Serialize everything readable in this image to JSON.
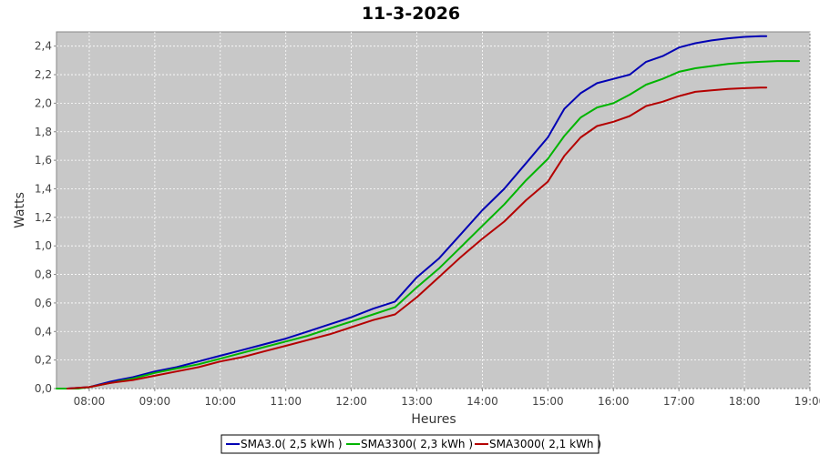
{
  "chart_data": {
    "type": "line",
    "title": "11-3-2026",
    "xlabel": "Heures",
    "ylabel": "Watts",
    "xlim": [
      "07:30",
      "19:00"
    ],
    "ylim": [
      0,
      2.5
    ],
    "x_ticks": [
      "08:00",
      "09:00",
      "10:00",
      "11:00",
      "12:00",
      "13:00",
      "14:00",
      "15:00",
      "16:00",
      "17:00",
      "18:00",
      "19:00"
    ],
    "y_ticks": [
      "0,0",
      "0,2",
      "0,4",
      "0,6",
      "0,8",
      "1,0",
      "1,2",
      "1,4",
      "1,6",
      "1,8",
      "2,0",
      "2,2",
      "2,4"
    ],
    "grid": true,
    "legend_position": "bottom",
    "series": [
      {
        "name": "SMA3.0( 2,5 kWh )",
        "color": "#0000b4",
        "x": [
          "07:40",
          "08:00",
          "08:20",
          "08:40",
          "09:00",
          "09:20",
          "09:40",
          "10:00",
          "10:20",
          "10:40",
          "11:00",
          "11:20",
          "11:40",
          "12:00",
          "12:20",
          "12:40",
          "13:00",
          "13:20",
          "13:40",
          "14:00",
          "14:20",
          "14:40",
          "15:00",
          "15:15",
          "15:30",
          "15:45",
          "16:00",
          "16:15",
          "16:30",
          "16:45",
          "17:00",
          "17:15",
          "17:30",
          "17:45",
          "18:00",
          "18:15",
          "18:20"
        ],
        "values": [
          0.0,
          0.01,
          0.05,
          0.08,
          0.12,
          0.15,
          0.19,
          0.23,
          0.27,
          0.31,
          0.35,
          0.4,
          0.45,
          0.5,
          0.56,
          0.61,
          0.78,
          0.91,
          1.08,
          1.25,
          1.4,
          1.58,
          1.76,
          1.96,
          2.07,
          2.14,
          2.17,
          2.2,
          2.29,
          2.33,
          2.39,
          2.42,
          2.44,
          2.455,
          2.465,
          2.47,
          2.47
        ]
      },
      {
        "name": "SMA3300( 2,3 kWh )",
        "color": "#00b400",
        "x": [
          "07:30",
          "07:50",
          "08:00",
          "08:20",
          "08:40",
          "09:00",
          "09:20",
          "09:40",
          "10:00",
          "10:20",
          "10:40",
          "11:00",
          "11:20",
          "11:40",
          "12:00",
          "12:20",
          "12:40",
          "13:00",
          "13:20",
          "13:40",
          "14:00",
          "14:20",
          "14:40",
          "15:00",
          "15:15",
          "15:30",
          "15:45",
          "16:00",
          "16:15",
          "16:30",
          "16:45",
          "17:00",
          "17:15",
          "17:30",
          "17:45",
          "18:00",
          "18:15",
          "18:30",
          "18:45",
          "18:50"
        ],
        "values": [
          0.0,
          0.0,
          0.01,
          0.04,
          0.07,
          0.11,
          0.14,
          0.17,
          0.21,
          0.25,
          0.29,
          0.33,
          0.37,
          0.42,
          0.47,
          0.52,
          0.57,
          0.71,
          0.84,
          0.99,
          1.14,
          1.29,
          1.46,
          1.61,
          1.77,
          1.9,
          1.97,
          2.0,
          2.06,
          2.13,
          2.17,
          2.22,
          2.245,
          2.26,
          2.275,
          2.285,
          2.29,
          2.295,
          2.295,
          2.295
        ]
      },
      {
        "name": "SMA3000( 2,1 kWh )",
        "color": "#b40000",
        "x": [
          "07:40",
          "08:00",
          "08:20",
          "08:40",
          "09:00",
          "09:20",
          "09:40",
          "10:00",
          "10:20",
          "10:40",
          "11:00",
          "11:20",
          "11:40",
          "12:00",
          "12:20",
          "12:40",
          "13:00",
          "13:20",
          "13:40",
          "14:00",
          "14:20",
          "14:40",
          "15:00",
          "15:15",
          "15:30",
          "15:45",
          "16:00",
          "16:15",
          "16:30",
          "16:45",
          "17:00",
          "17:15",
          "17:30",
          "17:45",
          "18:00",
          "18:15",
          "18:20"
        ],
        "values": [
          0.0,
          0.01,
          0.04,
          0.06,
          0.09,
          0.12,
          0.15,
          0.19,
          0.22,
          0.26,
          0.3,
          0.34,
          0.38,
          0.43,
          0.48,
          0.52,
          0.64,
          0.78,
          0.92,
          1.05,
          1.17,
          1.32,
          1.45,
          1.63,
          1.76,
          1.84,
          1.87,
          1.91,
          1.98,
          2.01,
          2.05,
          2.08,
          2.09,
          2.1,
          2.105,
          2.11,
          2.11
        ]
      }
    ]
  }
}
